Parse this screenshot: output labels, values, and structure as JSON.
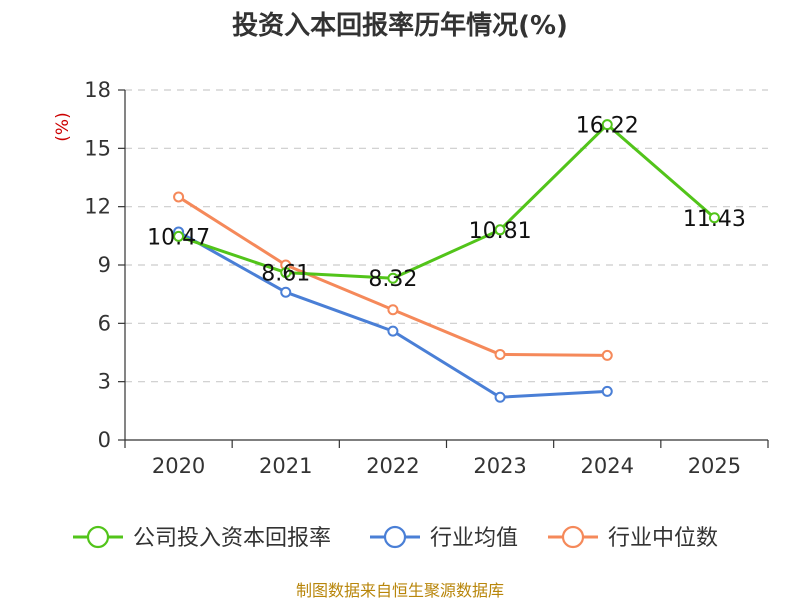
{
  "chart_data": {
    "type": "line",
    "title": "投资入本回报率历年情况(%)",
    "ylabel": "(%)",
    "xlabel": "",
    "categories": [
      "2020",
      "2021",
      "2022",
      "2023",
      "2024",
      "2025"
    ],
    "ylim": [
      0,
      18
    ],
    "yticks": [
      0,
      3,
      6,
      9,
      12,
      15,
      18
    ],
    "grid": true,
    "legend_position": "bottom",
    "series": [
      {
        "name": "公司投入资本回报率",
        "color": "#52c41a",
        "values": [
          10.47,
          8.61,
          8.32,
          10.81,
          16.22,
          11.43
        ],
        "labels": [
          "10.47",
          "8.61",
          "8.32",
          "10.81",
          "16.22",
          "11.43"
        ]
      },
      {
        "name": "行业均值",
        "color": "#4a7fd6",
        "values": [
          10.7,
          7.6,
          5.6,
          2.2,
          2.5,
          null
        ]
      },
      {
        "name": "行业中位数",
        "color": "#f5895a",
        "values": [
          12.5,
          9.0,
          6.7,
          4.4,
          4.35,
          null
        ]
      }
    ],
    "source": "制图数据来自恒生聚源数据库"
  }
}
